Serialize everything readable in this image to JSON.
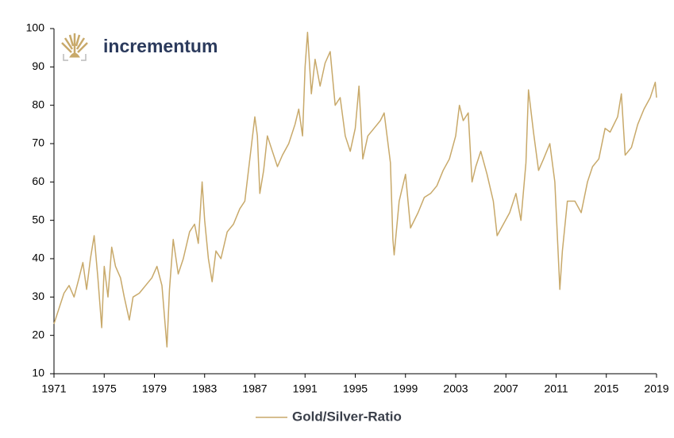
{
  "chart_data": {
    "type": "line",
    "logo": "incrementum",
    "x": [
      1971.0,
      1971.3,
      1971.8,
      1972.2,
      1972.6,
      1973.0,
      1973.3,
      1973.6,
      1973.9,
      1974.2,
      1974.5,
      1974.8,
      1975.0,
      1975.3,
      1975.6,
      1975.9,
      1976.3,
      1976.6,
      1977.0,
      1977.3,
      1977.8,
      1978.3,
      1978.8,
      1979.2,
      1979.6,
      1980.0,
      1980.2,
      1980.5,
      1980.9,
      1981.3,
      1981.8,
      1982.2,
      1982.5,
      1982.8,
      1983.0,
      1983.3,
      1983.6,
      1983.9,
      1984.3,
      1984.8,
      1985.3,
      1985.8,
      1986.2,
      1986.6,
      1987.0,
      1987.2,
      1987.4,
      1987.7,
      1988.0,
      1988.4,
      1988.8,
      1989.2,
      1989.7,
      1990.2,
      1990.5,
      1990.8,
      1991.0,
      1991.2,
      1991.5,
      1991.8,
      1992.2,
      1992.6,
      1993.0,
      1993.4,
      1993.8,
      1994.2,
      1994.6,
      1995.0,
      1995.3,
      1995.6,
      1996.0,
      1996.5,
      1997.0,
      1997.3,
      1997.8,
      1998.0,
      1998.1,
      1998.5,
      1999.0,
      1999.4,
      2000.0,
      2000.5,
      2001.0,
      2001.5,
      2002.0,
      2002.5,
      2003.0,
      2003.3,
      2003.6,
      2004.0,
      2004.3,
      2004.6,
      2005.0,
      2005.5,
      2006.0,
      2006.3,
      2006.8,
      2007.3,
      2007.8,
      2008.2,
      2008.6,
      2008.8,
      2009.2,
      2009.6,
      2010.0,
      2010.5,
      2010.9,
      2011.3,
      2011.5,
      2011.9,
      2012.5,
      2013.0,
      2013.5,
      2013.9,
      2014.4,
      2014.9,
      2015.3,
      2015.9,
      2016.2,
      2016.5,
      2017.0,
      2017.5,
      2018.0,
      2018.5,
      2018.9,
      2019.0
    ],
    "series": [
      {
        "name": "Gold/Silver-Ratio",
        "color": "#c8a96a",
        "values": [
          23,
          26,
          31,
          33,
          30,
          35,
          39,
          32,
          40,
          46,
          35,
          22,
          38,
          30,
          43,
          38,
          35,
          30,
          24,
          30,
          31,
          33,
          35,
          38,
          33,
          17,
          32,
          45,
          36,
          40,
          47,
          49,
          44,
          60,
          50,
          40,
          34,
          42,
          40,
          47,
          49,
          53,
          55,
          66,
          77,
          72,
          57,
          63,
          72,
          68,
          64,
          67,
          70,
          75,
          79,
          72,
          90,
          99,
          83,
          92,
          85,
          91,
          94,
          80,
          82,
          72,
          68,
          74,
          85,
          66,
          72,
          74,
          76,
          78,
          65,
          45,
          41,
          55,
          62,
          48,
          52,
          56,
          57,
          59,
          63,
          66,
          72,
          80,
          76,
          78,
          60,
          64,
          68,
          62,
          55,
          46,
          49,
          52,
          57,
          50,
          65,
          84,
          73,
          63,
          66,
          70,
          60,
          32,
          42,
          55,
          55,
          52,
          60,
          64,
          66,
          74,
          73,
          77,
          83,
          67,
          69,
          75,
          79,
          82,
          86,
          82
        ]
      }
    ],
    "xlim": [
      1971,
      2019
    ],
    "xticks": [
      1971,
      1975,
      1979,
      1983,
      1987,
      1991,
      1995,
      1999,
      2003,
      2007,
      2011,
      2015,
      2019
    ],
    "ylim": [
      10,
      100
    ],
    "yticks": [
      10,
      20,
      30,
      40,
      50,
      60,
      70,
      80,
      90,
      100
    ],
    "grid": false,
    "legend": "bottom"
  }
}
